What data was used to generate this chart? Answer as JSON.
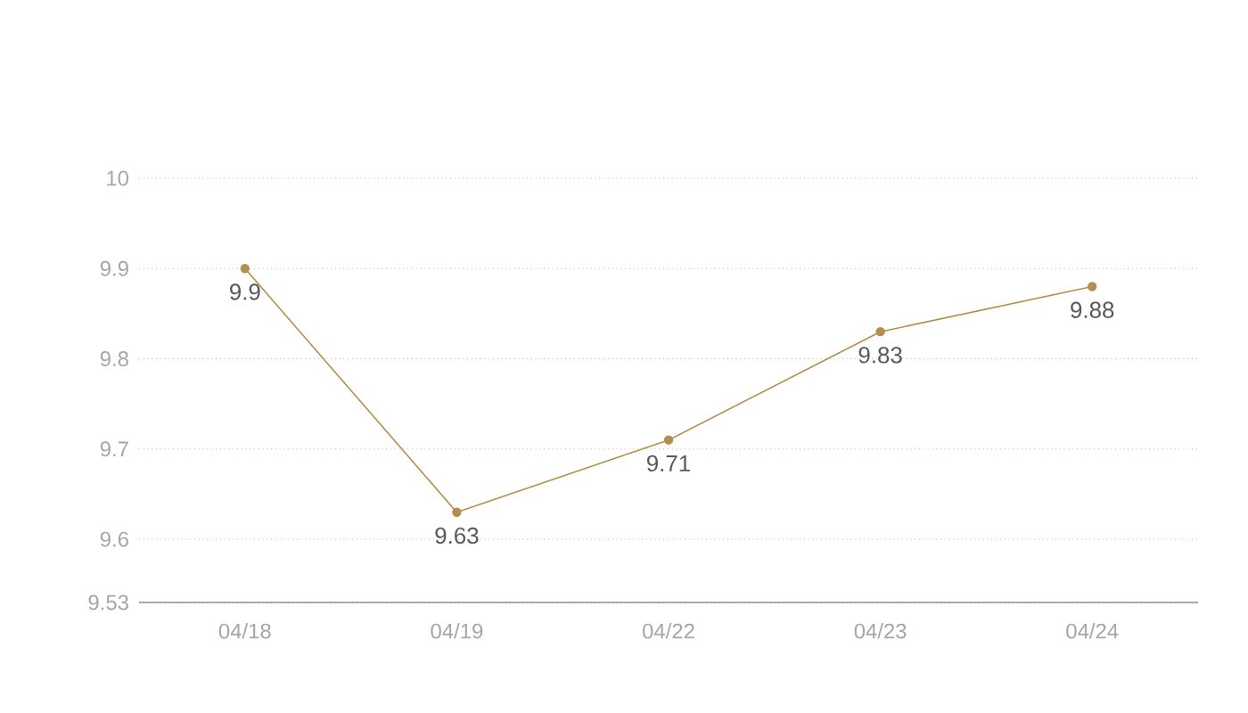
{
  "chart_data": {
    "type": "line",
    "categories": [
      "04/18",
      "04/19",
      "04/22",
      "04/23",
      "04/24"
    ],
    "values": [
      9.9,
      9.63,
      9.71,
      9.83,
      9.88
    ],
    "color": "#b38f4e",
    "ylim": [
      9.53,
      10.0
    ],
    "yticks": [
      9.53,
      9.6,
      9.7,
      9.8,
      9.9,
      10
    ],
    "grid": "y",
    "marker": "circle",
    "data_labels": true
  }
}
